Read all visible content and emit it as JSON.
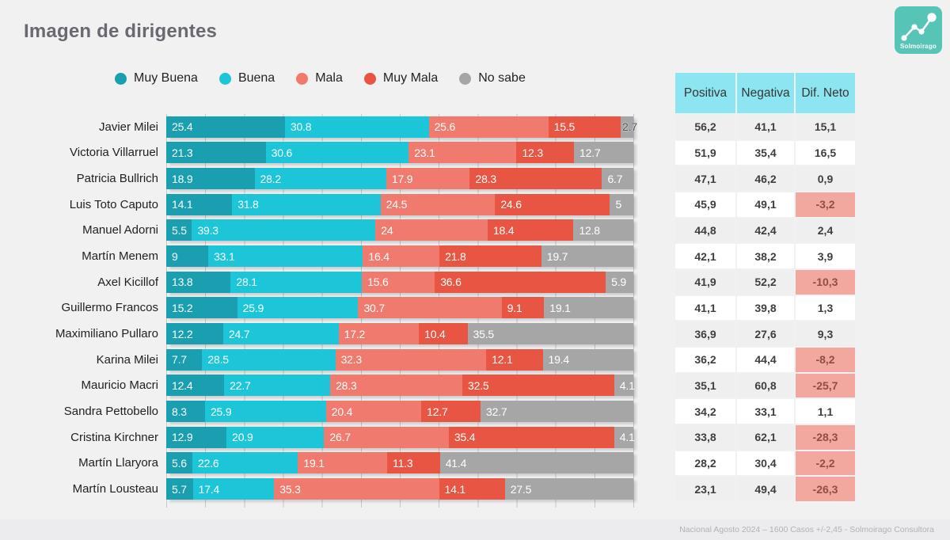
{
  "title": "Imagen de dirigentes",
  "logo": {
    "brand": "Solmoirago",
    "color": "#57c4b8"
  },
  "legend": [
    {
      "label": "Muy Buena",
      "color": "#1a9fb0"
    },
    {
      "label": "Buena",
      "color": "#1cc5d8"
    },
    {
      "label": "Mala",
      "color": "#f07a6d"
    },
    {
      "label": "Muy Mala",
      "color": "#e95543"
    },
    {
      "label": "No sabe",
      "color": "#a6a6a6"
    }
  ],
  "chart_data": {
    "type": "bar",
    "stacked": true,
    "orientation": "horizontal",
    "title": "Imagen de dirigentes",
    "xlim": [
      0,
      100
    ],
    "legend_position": "top",
    "categories": [
      "Javier Milei",
      "Victoria Villarruel",
      "Patricia Bullrich",
      "Luis Toto Caputo",
      "Manuel Adorni",
      "Martín Menem",
      "Axel Kicillof",
      "Guillermo Francos",
      "Maximiliano Pullaro",
      "Karina Milei",
      "Mauricio Macri",
      "Sandra Pettobello",
      "Cristina Kirchner",
      "Martín Llaryora",
      "Martín Lousteau"
    ],
    "series": [
      {
        "name": "Muy Buena",
        "color": "#1a9fb0",
        "values": [
          25.4,
          21.3,
          18.9,
          14.1,
          5.5,
          9,
          13.8,
          15.2,
          12.2,
          7.7,
          12.4,
          8.3,
          12.9,
          5.6,
          5.7
        ]
      },
      {
        "name": "Buena",
        "color": "#1cc5d8",
        "values": [
          30.8,
          30.6,
          28.2,
          31.8,
          39.3,
          33.1,
          28.1,
          25.9,
          24.7,
          28.5,
          22.7,
          25.9,
          20.9,
          22.6,
          17.4
        ]
      },
      {
        "name": "Mala",
        "color": "#f07a6d",
        "values": [
          25.6,
          23.1,
          17.9,
          24.5,
          24,
          16.4,
          15.6,
          30.7,
          17.2,
          32.3,
          28.3,
          20.4,
          26.7,
          19.1,
          35.3
        ]
      },
      {
        "name": "Muy Mala",
        "color": "#e95543",
        "values": [
          15.5,
          12.3,
          28.3,
          24.6,
          18.4,
          21.8,
          36.6,
          9.1,
          10.4,
          12.1,
          32.5,
          12.7,
          35.4,
          11.3,
          14.1
        ]
      },
      {
        "name": "No sabe",
        "color": "#a6a6a6",
        "values": [
          2.7,
          12.7,
          6.7,
          5,
          12.8,
          19.7,
          5.9,
          19.1,
          35.5,
          19.4,
          4.1,
          32.7,
          4.1,
          41.4,
          27.5
        ]
      }
    ]
  },
  "table": {
    "headers": [
      "Positiva",
      "Negativa",
      "Dif. Neto"
    ],
    "rows": [
      {
        "positiva": "56,2",
        "negativa": "41,1",
        "dif": "15,1",
        "negative": false
      },
      {
        "positiva": "51,9",
        "negativa": "35,4",
        "dif": "16,5",
        "negative": false
      },
      {
        "positiva": "47,1",
        "negativa": "46,2",
        "dif": "0,9",
        "negative": false
      },
      {
        "positiva": "45,9",
        "negativa": "49,1",
        "dif": "-3,2",
        "negative": true
      },
      {
        "positiva": "44,8",
        "negativa": "42,4",
        "dif": "2,4",
        "negative": false
      },
      {
        "positiva": "42,1",
        "negativa": "38,2",
        "dif": "3,9",
        "negative": false
      },
      {
        "positiva": "41,9",
        "negativa": "52,2",
        "dif": "-10,3",
        "negative": true
      },
      {
        "positiva": "41,1",
        "negativa": "39,8",
        "dif": "1,3",
        "negative": false
      },
      {
        "positiva": "36,9",
        "negativa": "27,6",
        "dif": "9,3",
        "negative": false
      },
      {
        "positiva": "36,2",
        "negativa": "44,4",
        "dif": "-8,2",
        "negative": true
      },
      {
        "positiva": "35,1",
        "negativa": "60,8",
        "dif": "-25,7",
        "negative": true
      },
      {
        "positiva": "34,2",
        "negativa": "33,1",
        "dif": "1,1",
        "negative": false
      },
      {
        "positiva": "33,8",
        "negativa": "62,1",
        "dif": "-28,3",
        "negative": true
      },
      {
        "positiva": "28,2",
        "negativa": "30,4",
        "dif": "-2,2",
        "negative": true
      },
      {
        "positiva": "23,1",
        "negativa": "49,4",
        "dif": "-26,3",
        "negative": true
      }
    ]
  },
  "footer": "Nacional Agosto 2024 – 1600 Casos +/-2,45 - Solmoirago Consultora"
}
